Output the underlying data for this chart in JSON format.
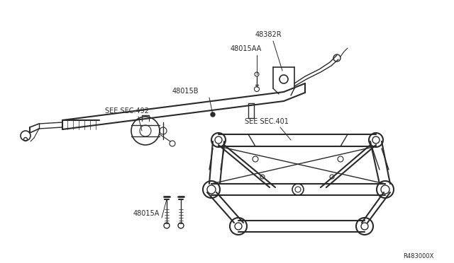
{
  "bg_color": "#ffffff",
  "line_color": "#2a2a2a",
  "label_color": "#2a2a2a",
  "part_number_48382R": "48382R",
  "part_number_48015AA": "48015AA",
  "part_number_48015B": "48015B",
  "part_number_48015A": "48015A",
  "see_sec_492": "SEE SEC.492",
  "see_sec_401": "SEE SEC.401",
  "ref_code": "R483000X",
  "figsize": [
    6.4,
    3.72
  ],
  "dpi": 100
}
